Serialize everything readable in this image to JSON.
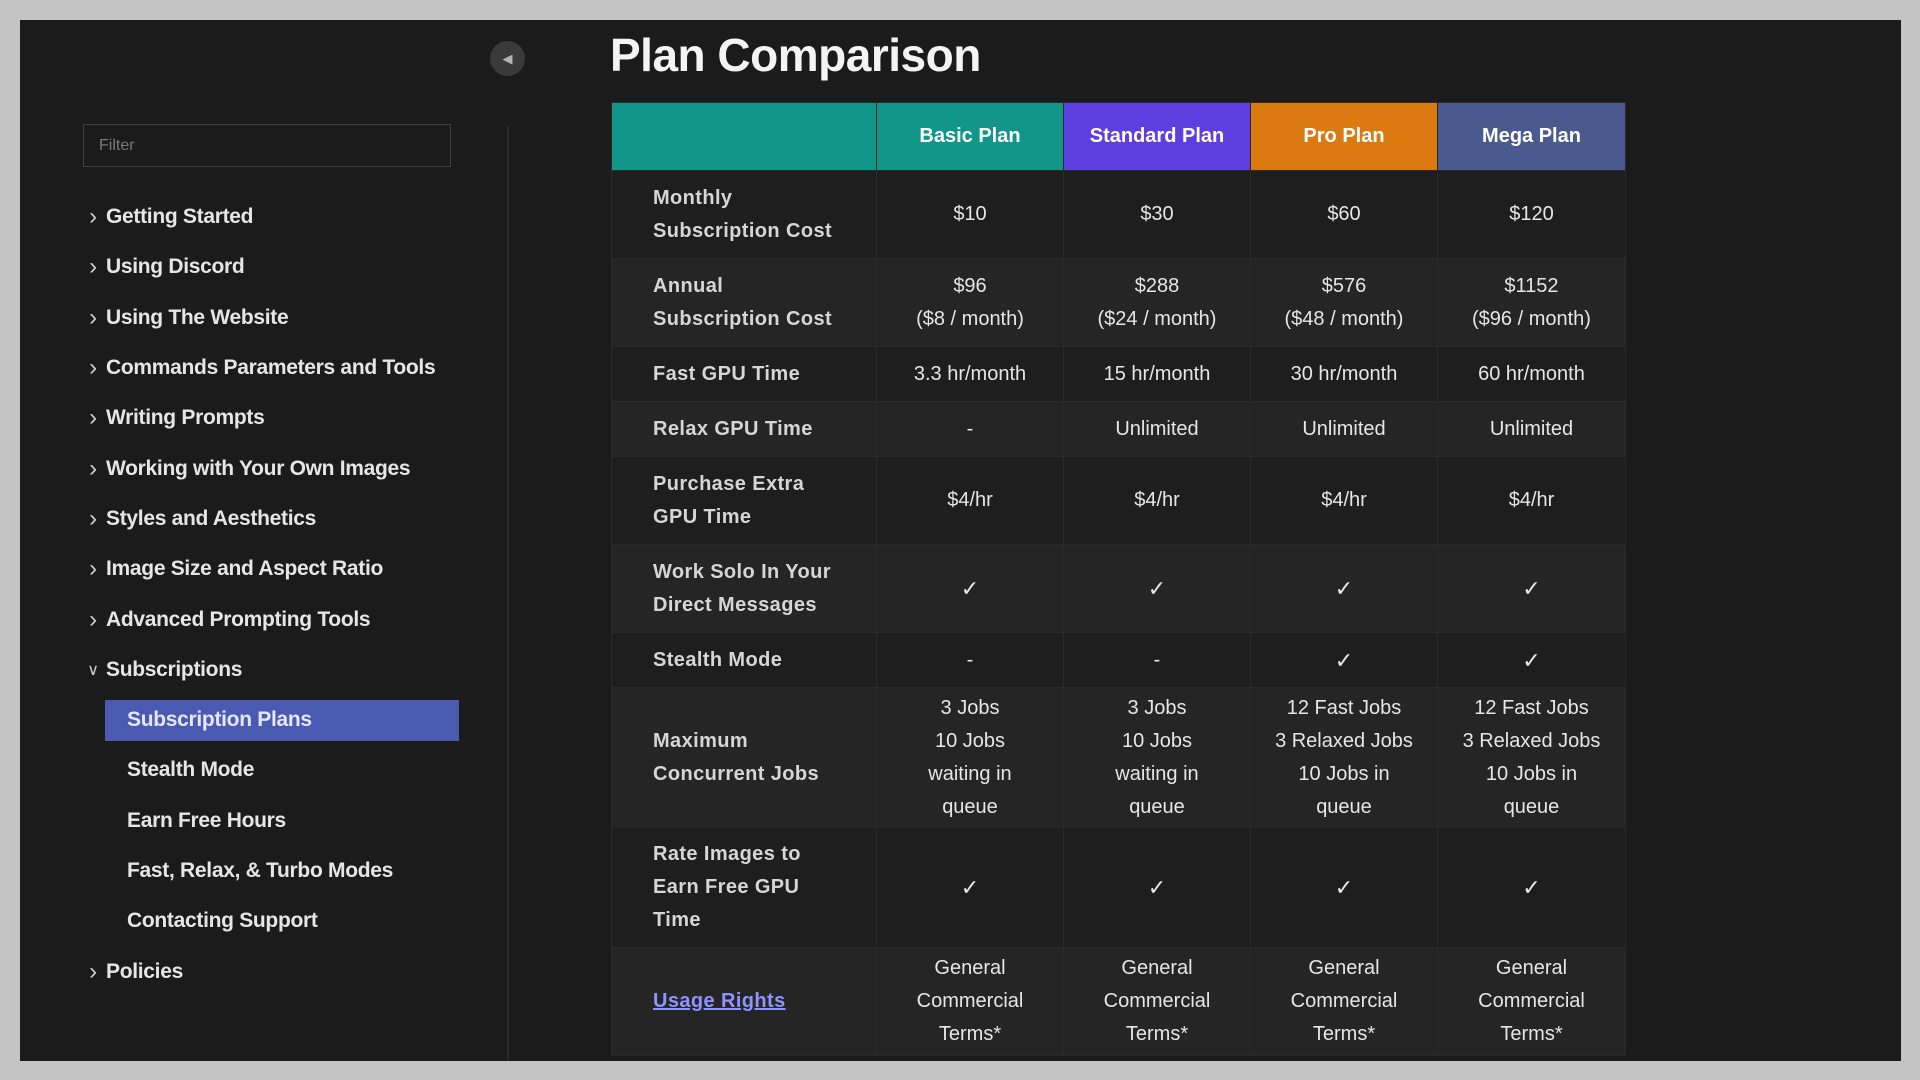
{
  "sidebar": {
    "filter_placeholder": "Filter",
    "collapse_icon": "chevron-left-icon",
    "items": [
      {
        "label": "Getting Started",
        "type": "section",
        "expanded": false
      },
      {
        "label": "Using Discord",
        "type": "section",
        "expanded": false
      },
      {
        "label": "Using The Website",
        "type": "section",
        "expanded": false
      },
      {
        "label": "Commands Parameters and Tools",
        "type": "section",
        "expanded": false
      },
      {
        "label": "Writing Prompts",
        "type": "section",
        "expanded": false
      },
      {
        "label": "Working with Your Own Images",
        "type": "section",
        "expanded": false
      },
      {
        "label": "Styles and Aesthetics",
        "type": "section",
        "expanded": false
      },
      {
        "label": "Image Size and Aspect Ratio",
        "type": "section",
        "expanded": false
      },
      {
        "label": "Advanced Prompting Tools",
        "type": "section",
        "expanded": false
      },
      {
        "label": "Subscriptions",
        "type": "section",
        "expanded": true
      },
      {
        "label": "Subscription Plans",
        "type": "sub",
        "active": true
      },
      {
        "label": "Stealth Mode",
        "type": "sub"
      },
      {
        "label": "Earn Free Hours",
        "type": "sub"
      },
      {
        "label": "Fast, Relax, & Turbo Modes",
        "type": "sub"
      },
      {
        "label": "Contacting Support",
        "type": "sub"
      },
      {
        "label": "Policies",
        "type": "section",
        "expanded": false
      }
    ]
  },
  "main": {
    "title": "Plan Comparison",
    "table": {
      "headers": [
        {
          "label": "",
          "color": "#13968a"
        },
        {
          "label": "Basic Plan",
          "color": "#13968a"
        },
        {
          "label": "Standard Plan",
          "color": "#5d3fe0"
        },
        {
          "label": "Pro Plan",
          "color": "#da7a10"
        },
        {
          "label": "Mega Plan",
          "color": "#4a5a8e"
        }
      ],
      "rows": [
        {
          "label": "Monthly\nSubscription Cost",
          "cells": [
            "$10",
            "$30",
            "$60",
            "$120"
          ]
        },
        {
          "label": "Annual\nSubscription Cost",
          "cells": [
            "$96\n($8 / month)",
            "$288\n($24 / month)",
            "$576\n($48 / month)",
            "$1152\n($96 / month)"
          ]
        },
        {
          "label": "Fast GPU Time",
          "cells": [
            "3.3 hr/month",
            "15 hr/month",
            "30 hr/month",
            "60 hr/month"
          ]
        },
        {
          "label": "Relax GPU Time",
          "cells": [
            "-",
            "Unlimited",
            "Unlimited",
            "Unlimited"
          ]
        },
        {
          "label": "Purchase Extra\nGPU Time",
          "cells": [
            "$4/hr",
            "$4/hr",
            "$4/hr",
            "$4/hr"
          ]
        },
        {
          "label": "Work Solo In Your\nDirect Messages",
          "cells": [
            "✓",
            "✓",
            "✓",
            "✓"
          ]
        },
        {
          "label": "Stealth Mode",
          "cells": [
            "-",
            "-",
            "✓",
            "✓"
          ]
        },
        {
          "label": "Maximum\nConcurrent Jobs",
          "cells": [
            "3 Jobs\n10 Jobs\nwaiting in\nqueue",
            "3 Jobs\n10 Jobs\nwaiting in\nqueue",
            "12 Fast Jobs\n3 Relaxed Jobs\n10 Jobs in\nqueue",
            "12 Fast Jobs\n3 Relaxed Jobs\n10 Jobs in\nqueue"
          ]
        },
        {
          "label": "Rate Images to\nEarn Free GPU\nTime",
          "cells": [
            "✓",
            "✓",
            "✓",
            "✓"
          ]
        },
        {
          "label": "Usage Rights",
          "link": true,
          "cells": [
            "General\nCommercial\nTerms*",
            "General\nCommercial\nTerms*",
            "General\nCommercial\nTerms*",
            "General\nCommercial\nTerms*"
          ]
        }
      ]
    }
  }
}
